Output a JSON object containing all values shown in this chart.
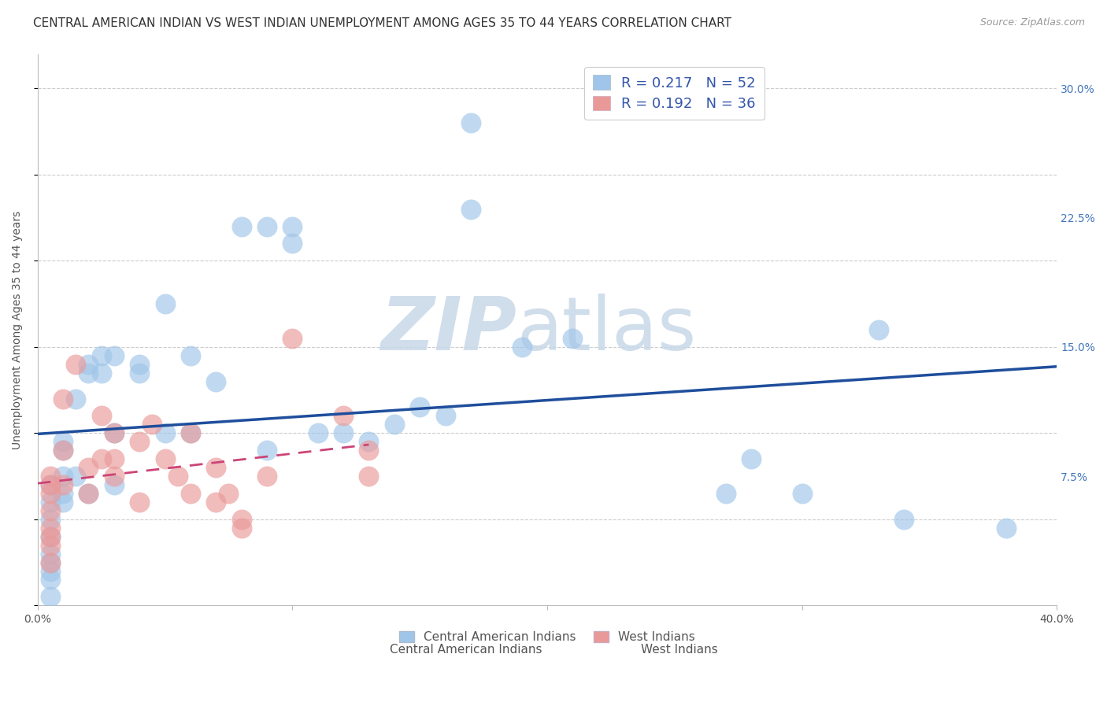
{
  "title": "CENTRAL AMERICAN INDIAN VS WEST INDIAN UNEMPLOYMENT AMONG AGES 35 TO 44 YEARS CORRELATION CHART",
  "source": "Source: ZipAtlas.com",
  "ylabel": "Unemployment Among Ages 35 to 44 years",
  "xlim": [
    0.0,
    0.4
  ],
  "ylim": [
    0.0,
    0.32
  ],
  "xticks": [
    0.0,
    0.1,
    0.2,
    0.3,
    0.4
  ],
  "xticklabels": [
    "0.0%",
    "",
    "",
    "",
    "40.0%"
  ],
  "yticks": [
    0.0,
    0.075,
    0.15,
    0.225,
    0.3
  ],
  "yticklabels": [
    "",
    "7.5%",
    "15.0%",
    "22.5%",
    "30.0%"
  ],
  "r1": 0.217,
  "n1": 52,
  "r2": 0.192,
  "n2": 36,
  "color1": "#9fc5e8",
  "color2": "#ea9999",
  "trendline1_color": "#1f4e9c",
  "trendline2_color": "#cc4477",
  "watermark_zip": "ZIP",
  "watermark_atlas": "atlas",
  "scatter1_x": [
    0.005,
    0.005,
    0.005,
    0.005,
    0.005,
    0.005,
    0.005,
    0.005,
    0.005,
    0.01,
    0.01,
    0.01,
    0.01,
    0.01,
    0.015,
    0.015,
    0.02,
    0.02,
    0.02,
    0.025,
    0.025,
    0.03,
    0.03,
    0.03,
    0.04,
    0.04,
    0.05,
    0.05,
    0.06,
    0.06,
    0.07,
    0.08,
    0.09,
    0.09,
    0.1,
    0.1,
    0.11,
    0.12,
    0.13,
    0.14,
    0.15,
    0.16,
    0.17,
    0.17,
    0.19,
    0.21,
    0.27,
    0.28,
    0.3,
    0.33,
    0.34,
    0.38
  ],
  "scatter1_y": [
    0.06,
    0.07,
    0.05,
    0.04,
    0.03,
    0.025,
    0.02,
    0.015,
    0.005,
    0.075,
    0.065,
    0.095,
    0.09,
    0.06,
    0.12,
    0.075,
    0.135,
    0.14,
    0.065,
    0.145,
    0.135,
    0.1,
    0.145,
    0.07,
    0.135,
    0.14,
    0.175,
    0.1,
    0.1,
    0.145,
    0.13,
    0.22,
    0.22,
    0.09,
    0.22,
    0.21,
    0.1,
    0.1,
    0.095,
    0.105,
    0.115,
    0.11,
    0.28,
    0.23,
    0.15,
    0.155,
    0.065,
    0.085,
    0.065,
    0.16,
    0.05,
    0.045
  ],
  "scatter2_x": [
    0.005,
    0.005,
    0.005,
    0.005,
    0.005,
    0.005,
    0.005,
    0.005,
    0.01,
    0.01,
    0.01,
    0.015,
    0.02,
    0.02,
    0.025,
    0.025,
    0.03,
    0.03,
    0.03,
    0.04,
    0.04,
    0.045,
    0.05,
    0.055,
    0.06,
    0.06,
    0.07,
    0.07,
    0.075,
    0.08,
    0.08,
    0.09,
    0.1,
    0.12,
    0.13,
    0.13
  ],
  "scatter2_y": [
    0.075,
    0.065,
    0.055,
    0.045,
    0.04,
    0.035,
    0.025,
    0.07,
    0.12,
    0.09,
    0.07,
    0.14,
    0.08,
    0.065,
    0.11,
    0.085,
    0.1,
    0.085,
    0.075,
    0.095,
    0.06,
    0.105,
    0.085,
    0.075,
    0.1,
    0.065,
    0.08,
    0.06,
    0.065,
    0.05,
    0.045,
    0.075,
    0.155,
    0.11,
    0.09,
    0.075
  ],
  "background_color": "#ffffff",
  "grid_color": "#cccccc",
  "title_fontsize": 11,
  "axis_label_fontsize": 10,
  "tick_fontsize": 10,
  "legend_fontsize": 13,
  "legend_text_color": "#3355aa",
  "right_tick_color": "#4477bb"
}
